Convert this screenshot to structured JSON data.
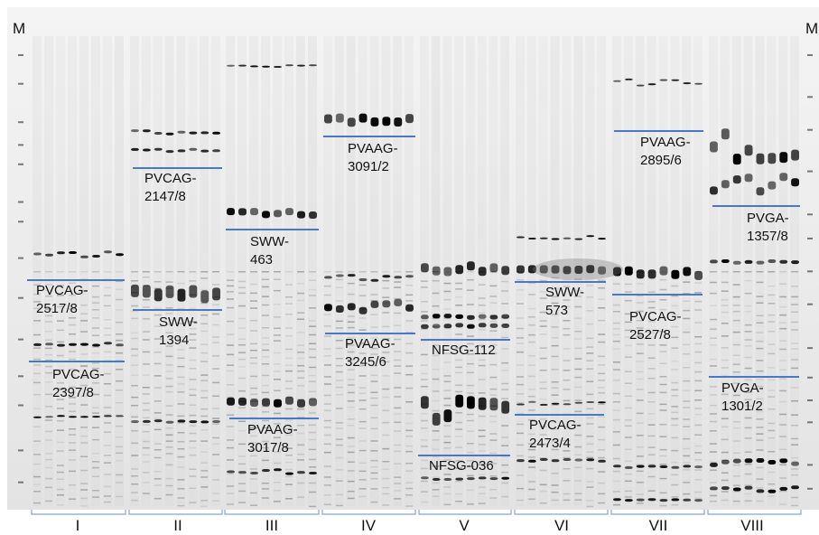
{
  "marker_label_left": "M",
  "marker_label_right": "M",
  "colors": {
    "divider": "#4a79c4",
    "bracket": "#7ea6d6",
    "band": "#000000",
    "background": "#ececec"
  },
  "groups": [
    "I",
    "II",
    "III",
    "IV",
    "V",
    "VI",
    "VII",
    "VIII"
  ],
  "markers": [
    {
      "line1": "PVCAG-",
      "line2": "2517/8"
    },
    {
      "line1": "PVCAG-",
      "line2": "2397/8"
    },
    {
      "line1": "PVCAG-",
      "line2": "2147/8"
    },
    {
      "line1": "SWW-",
      "line2": "1394"
    },
    {
      "line1": "SWW-",
      "line2": "463"
    },
    {
      "line1": "PVAAG-",
      "line2": "3017/8"
    },
    {
      "line1": "PVAAG-",
      "line2": "3091/2"
    },
    {
      "line1": "PVAAG-",
      "line2": "3245/6"
    },
    {
      "line1": "NFSG-112",
      "line2": ""
    },
    {
      "line1": "NFSG-036",
      "line2": ""
    },
    {
      "line1": "SWW-",
      "line2": "573"
    },
    {
      "line1": "PVCAG-",
      "line2": "2473/4"
    },
    {
      "line1": "PVAAG-",
      "line2": "2895/6"
    },
    {
      "line1": "PVCAG-",
      "line2": "2527/8"
    },
    {
      "line1": "PVGA-",
      "line2": "1357/8"
    },
    {
      "line1": "PVGA-",
      "line2": "1301/2"
    }
  ]
}
